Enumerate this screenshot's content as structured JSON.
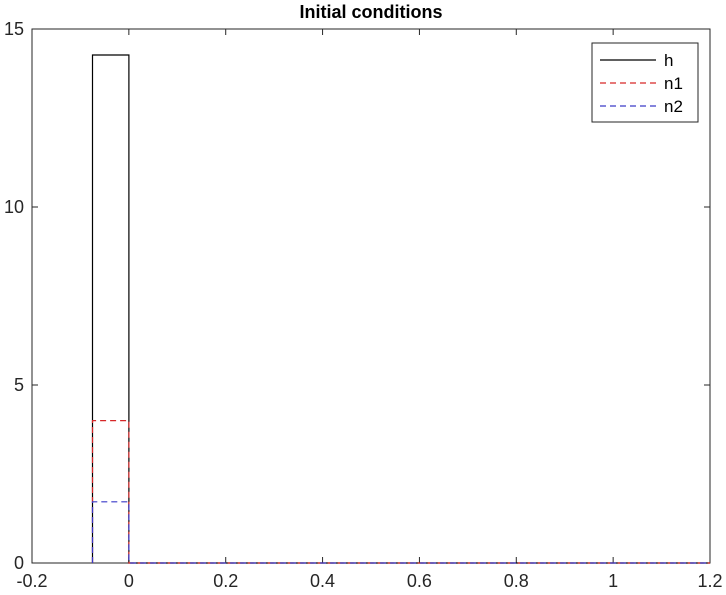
{
  "chart_data": {
    "type": "line",
    "title": "Initial conditions",
    "xlabel": "",
    "ylabel": "",
    "xlim": [
      -0.2,
      1.2
    ],
    "ylim": [
      0,
      15
    ],
    "xticks": [
      -0.2,
      0,
      0.2,
      0.4,
      0.6,
      0.8,
      1,
      1.2
    ],
    "xtick_labels": [
      "-0.2",
      "0",
      "0.2",
      "0.4",
      "0.6",
      "0.8",
      "1",
      "1.2"
    ],
    "yticks": [
      0,
      5,
      10,
      15
    ],
    "ytick_labels": [
      "0",
      "5",
      "10",
      "15"
    ],
    "grid": false,
    "legend_position": "top-right",
    "series": [
      {
        "name": "h",
        "color": "#000000",
        "style": "solid",
        "x": [
          -0.075,
          -0.075,
          0,
          0,
          1.2
        ],
        "y": [
          0,
          14.27,
          14.27,
          0,
          0
        ]
      },
      {
        "name": "n1",
        "color": "#d62728",
        "style": "dashed",
        "x": [
          -0.075,
          -0.075,
          0,
          0,
          1.2
        ],
        "y": [
          0,
          4.0,
          4.0,
          0,
          0
        ]
      },
      {
        "name": "n2",
        "color": "#3a3ac8",
        "style": "dashed",
        "x": [
          -0.075,
          -0.075,
          0,
          0,
          1.2
        ],
        "y": [
          0,
          1.72,
          1.72,
          0,
          0
        ]
      }
    ]
  }
}
